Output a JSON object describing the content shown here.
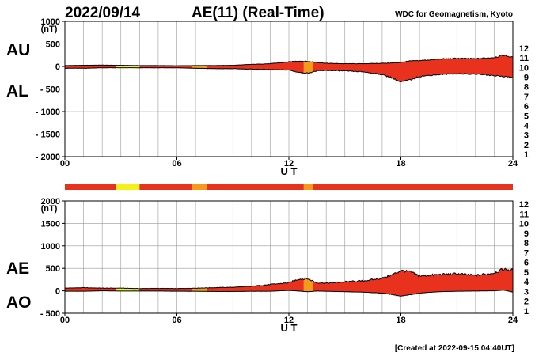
{
  "header": {
    "date": "2022/09/14",
    "title": "AE(11) (Real-Time)",
    "source": "WDC for Geomagnetism, Kyoto"
  },
  "footer": {
    "created": "[Created at 2022-09-15 04:40UT]"
  },
  "labels": {
    "au": "AU",
    "al": "AL",
    "ae": "AE",
    "ao": "AO",
    "ut": "U T",
    "unit": "(nT)"
  },
  "station_scale": {
    "items": [
      {
        "label": "12",
        "color": "#ff2e8a"
      },
      {
        "label": "11",
        "color": "#e8321e"
      },
      {
        "label": "10",
        "color": "#ff9900"
      },
      {
        "label": "9",
        "color": "#e8e800"
      },
      {
        "label": "8",
        "color": "#33cc33"
      },
      {
        "label": "7",
        "color": "#00cccc"
      },
      {
        "label": "6",
        "color": "#1f6fff"
      },
      {
        "label": "5",
        "color": "#2020a0"
      },
      {
        "label": "4",
        "color": "#cc00cc"
      },
      {
        "label": "3",
        "color": "#000000"
      },
      {
        "label": "2",
        "color": "#777777"
      },
      {
        "label": "1",
        "color": "#bbbbbb"
      }
    ]
  },
  "colors": {
    "fill_11": "#e8321e",
    "fill_10": "#f59a1b",
    "fill_9": "#f2f21a",
    "grid": "#999999",
    "line": "#000000"
  },
  "chart_data": [
    {
      "type": "area",
      "name": "AU/AL",
      "xlabel": "U T",
      "x_ticks": [
        "00",
        "06",
        "12",
        "18",
        "24"
      ],
      "xlim": [
        0,
        24
      ],
      "ylim": [
        -2000,
        1000
      ],
      "y_ticks": [
        "1000",
        "500",
        "0",
        "- 500",
        "- 1000",
        "- 1500",
        "- 2000"
      ],
      "y_tick_values": [
        1000,
        500,
        0,
        -500,
        -1000,
        -1500,
        -2000
      ],
      "grid": true,
      "series": [
        {
          "name": "AU",
          "x": [
            0,
            1,
            2,
            3,
            4,
            5,
            6,
            7,
            8,
            9,
            10,
            11,
            12,
            12.5,
            13,
            13.5,
            14,
            15,
            16,
            17,
            17.5,
            18,
            18.5,
            19,
            20,
            21,
            22,
            23,
            23.5,
            24
          ],
          "values": [
            20,
            25,
            30,
            25,
            20,
            20,
            15,
            20,
            20,
            25,
            45,
            60,
            100,
            120,
            110,
            90,
            70,
            60,
            60,
            70,
            75,
            90,
            120,
            130,
            160,
            180,
            170,
            200,
            250,
            200
          ]
        },
        {
          "name": "AL",
          "x": [
            0,
            1,
            2,
            3,
            4,
            5,
            6,
            7,
            8,
            9,
            10,
            11,
            12,
            12.5,
            13,
            13.5,
            14,
            15,
            16,
            17,
            17.5,
            18,
            18.5,
            19,
            20,
            21,
            22,
            23,
            23.5,
            24
          ],
          "values": [
            -40,
            -40,
            -30,
            -30,
            -30,
            -30,
            -30,
            -40,
            -50,
            -50,
            -60,
            -70,
            -80,
            -130,
            -150,
            -100,
            -90,
            -100,
            -120,
            -180,
            -250,
            -350,
            -300,
            -220,
            -180,
            -160,
            -170,
            -200,
            -220,
            -250
          ]
        }
      ],
      "station_color_segments": [
        {
          "from": 0,
          "to": 2.75,
          "level": 11
        },
        {
          "from": 2.75,
          "to": 4.0,
          "level": 9
        },
        {
          "from": 4.0,
          "to": 6.8,
          "level": 11
        },
        {
          "from": 6.8,
          "to": 7.6,
          "level": 10
        },
        {
          "from": 7.6,
          "to": 12.8,
          "level": 11
        },
        {
          "from": 12.8,
          "to": 13.3,
          "level": 10
        },
        {
          "from": 13.3,
          "to": 24,
          "level": 11
        }
      ]
    },
    {
      "type": "area",
      "name": "AE/AO",
      "xlabel": "U T",
      "x_ticks": [
        "00",
        "06",
        "12",
        "18",
        "24"
      ],
      "xlim": [
        0,
        24
      ],
      "ylim": [
        -500,
        2000
      ],
      "y_ticks": [
        "2000",
        "1500",
        "1000",
        "500",
        "0",
        "- 500"
      ],
      "y_tick_values": [
        2000,
        1500,
        1000,
        500,
        0,
        -500
      ],
      "grid": true,
      "series": [
        {
          "name": "AE",
          "x": [
            0,
            1,
            2,
            3,
            4,
            5,
            6,
            7,
            8,
            9,
            10,
            11,
            12,
            12.5,
            13,
            13.5,
            14,
            15,
            16,
            17,
            17.5,
            18,
            18.5,
            19,
            20,
            21,
            22,
            23,
            23.5,
            24
          ],
          "values": [
            60,
            70,
            60,
            60,
            50,
            55,
            50,
            60,
            70,
            80,
            100,
            140,
            180,
            260,
            270,
            180,
            170,
            200,
            220,
            280,
            350,
            450,
            420,
            330,
            360,
            380,
            340,
            400,
            480,
            460
          ]
        },
        {
          "name": "AO",
          "x": [
            0,
            1,
            2,
            3,
            4,
            5,
            6,
            7,
            8,
            9,
            10,
            11,
            12,
            12.5,
            13,
            13.5,
            14,
            15,
            16,
            17,
            17.5,
            18,
            18.5,
            19,
            20,
            21,
            22,
            23,
            23.5,
            24
          ],
          "values": [
            -10,
            -10,
            0,
            -5,
            -5,
            -5,
            -10,
            -10,
            -15,
            -15,
            -10,
            -10,
            10,
            -5,
            -20,
            -5,
            -10,
            -20,
            -30,
            -50,
            -80,
            -120,
            -90,
            -50,
            -20,
            -10,
            -5,
            0,
            20,
            -30
          ]
        }
      ]
    }
  ]
}
